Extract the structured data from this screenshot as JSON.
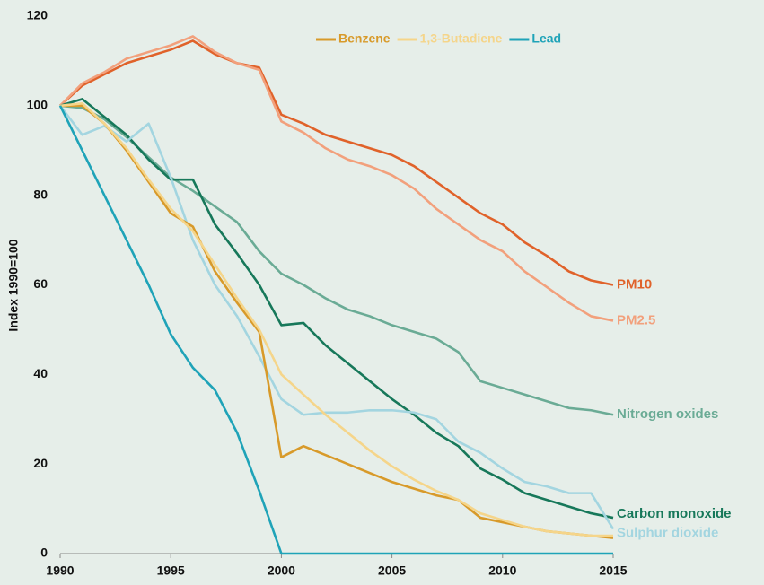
{
  "chart_data": {
    "type": "line",
    "y_label": "Index 1990=100",
    "x": [
      1990,
      1991,
      1992,
      1993,
      1994,
      1995,
      1996,
      1997,
      1998,
      1999,
      2000,
      2001,
      2002,
      2003,
      2004,
      2005,
      2006,
      2007,
      2008,
      2009,
      2010,
      2011,
      2012,
      2013,
      2014,
      2015
    ],
    "xlim": [
      1990,
      2015
    ],
    "xticks": [
      1990,
      1995,
      2000,
      2005,
      2010,
      2015
    ],
    "ylim": [
      0,
      120
    ],
    "yticks": [
      0,
      20,
      40,
      60,
      80,
      100,
      120
    ],
    "grid": false,
    "legend": "top",
    "series": [
      {
        "name": "PM10",
        "color": "#e0622a",
        "labeled": "end",
        "values": [
          100,
          104.5,
          107,
          109.5,
          111,
          112.5,
          114.5,
          111.5,
          109.5,
          108.5,
          98,
          96,
          93.5,
          92,
          90.5,
          89,
          86.5,
          83,
          79.5,
          76,
          73.5,
          69.5,
          66.5,
          63,
          61,
          60
        ]
      },
      {
        "name": "PM2.5",
        "color": "#f2a07c",
        "labeled": "end",
        "values": [
          100,
          105,
          107.5,
          110.5,
          112,
          113.5,
          115.5,
          112,
          109.5,
          108,
          96.5,
          94,
          90.5,
          88,
          86.5,
          84.5,
          81.5,
          77,
          73.5,
          70,
          67.5,
          63,
          59.5,
          56,
          53,
          52
        ]
      },
      {
        "name": "Nitrogen oxides",
        "color": "#6aab95",
        "labeled": "end",
        "values": [
          100,
          99.5,
          97,
          93,
          88.5,
          84,
          81,
          77.5,
          74,
          67.5,
          62.5,
          60,
          57,
          54.5,
          53,
          51,
          49.5,
          48,
          45,
          38.5,
          37,
          35.5,
          34,
          32.5,
          32,
          31
        ]
      },
      {
        "name": "Carbon monoxide",
        "color": "#17785a",
        "labeled": "end",
        "values": [
          100,
          101.5,
          97.5,
          93.5,
          88,
          83.5,
          83.5,
          73.5,
          67,
          60,
          51,
          51.5,
          46.5,
          42.5,
          38.5,
          34.5,
          31,
          27,
          24,
          19,
          16.5,
          13.5,
          12,
          10.5,
          9,
          8
        ]
      },
      {
        "name": "Sulphur dioxide",
        "color": "#a3d5e0",
        "labeled": "end",
        "values": [
          100,
          93.5,
          95.5,
          92,
          96,
          84,
          70,
          60,
          53,
          44,
          34.5,
          31,
          31.5,
          31.5,
          32,
          32,
          31.5,
          30,
          25,
          22.5,
          19,
          16,
          15,
          13.5,
          13.5,
          5.5
        ]
      },
      {
        "name": "Benzene",
        "color": "#d89a2a",
        "labeled": "legend",
        "values": [
          100,
          100,
          96,
          90,
          83,
          76,
          73,
          63,
          56,
          49.5,
          21.5,
          24,
          22,
          20,
          18,
          16,
          14.5,
          13,
          12,
          8,
          7,
          6,
          5,
          4.5,
          4,
          3.5
        ]
      },
      {
        "name": "1,3-Butadiene",
        "color": "#f5d58a",
        "labeled": "legend",
        "values": [
          100,
          100.5,
          96,
          90.5,
          83.5,
          77,
          72,
          64.5,
          57,
          50,
          40,
          35.5,
          31,
          27,
          23,
          19.5,
          16.5,
          14,
          12,
          9,
          7.5,
          6,
          5,
          4.5,
          4,
          4
        ]
      },
      {
        "name": "Lead",
        "color": "#1fa3b8",
        "labeled": "legend",
        "values": [
          100,
          90,
          80,
          70,
          60,
          49,
          41.5,
          36.5,
          27,
          14,
          0,
          0,
          0,
          0,
          0,
          0,
          0,
          0,
          0,
          0,
          0,
          0,
          0,
          0,
          0,
          0
        ]
      }
    ]
  }
}
